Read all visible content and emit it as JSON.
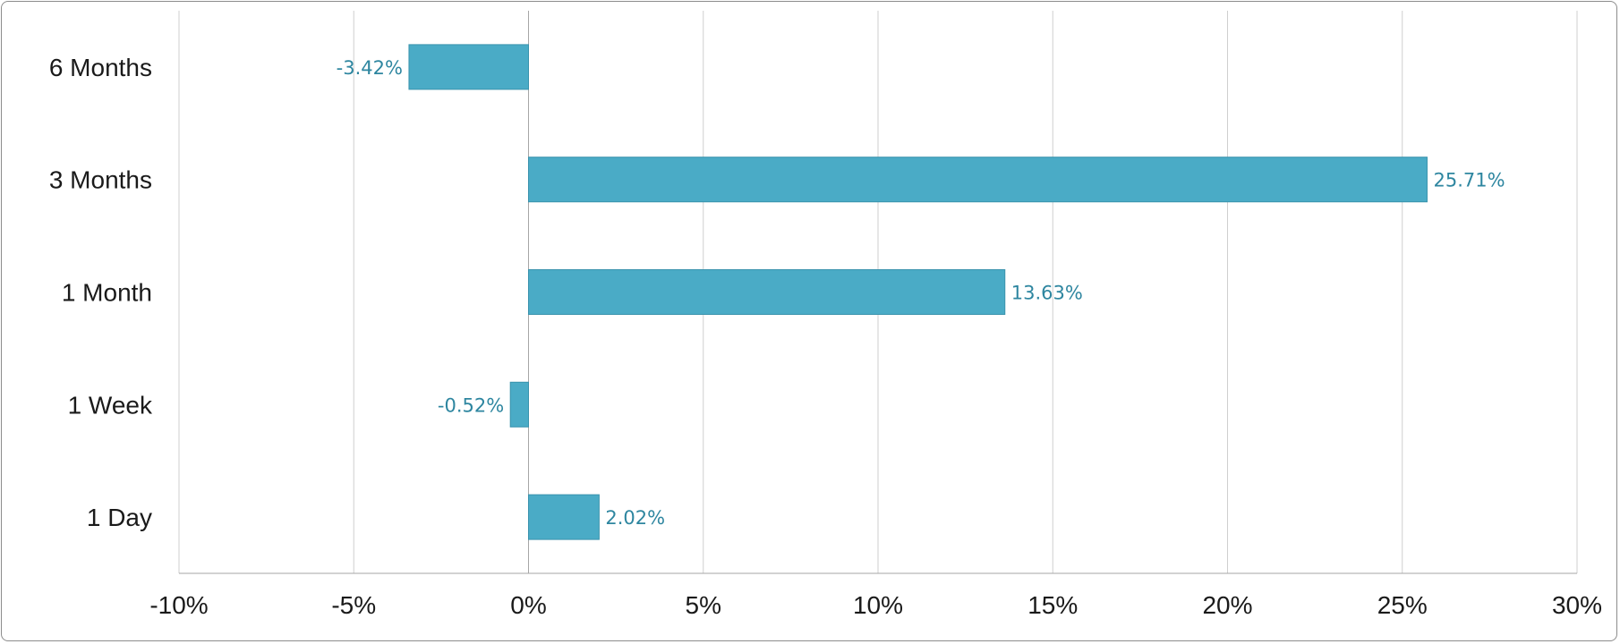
{
  "chart_data": {
    "type": "bar",
    "orientation": "horizontal",
    "categories": [
      "6 Months",
      "3 Months",
      "1 Month",
      "1 Week",
      "1 Day"
    ],
    "values": [
      -3.42,
      25.71,
      13.63,
      -0.52,
      2.02
    ],
    "data_labels": [
      "-3.42%",
      "25.71%",
      "13.63%",
      "-0.52%",
      "2.02%"
    ],
    "x_ticks": [
      "-10%",
      "-5%",
      "0%",
      "5%",
      "10%",
      "15%",
      "20%",
      "25%",
      "30%"
    ],
    "x_tick_values": [
      -10,
      -5,
      0,
      5,
      10,
      15,
      20,
      25,
      30
    ],
    "xlim": [
      -10,
      30
    ],
    "title": "",
    "xlabel": "",
    "ylabel": "",
    "grid": "vertical",
    "legend": "none",
    "colors": {
      "bar": "#4aabc6",
      "bar_stroke": "#3a93ad",
      "label": "#2e86a0",
      "grid": "#cfcfcf",
      "axis": "#a6a6a6"
    }
  }
}
